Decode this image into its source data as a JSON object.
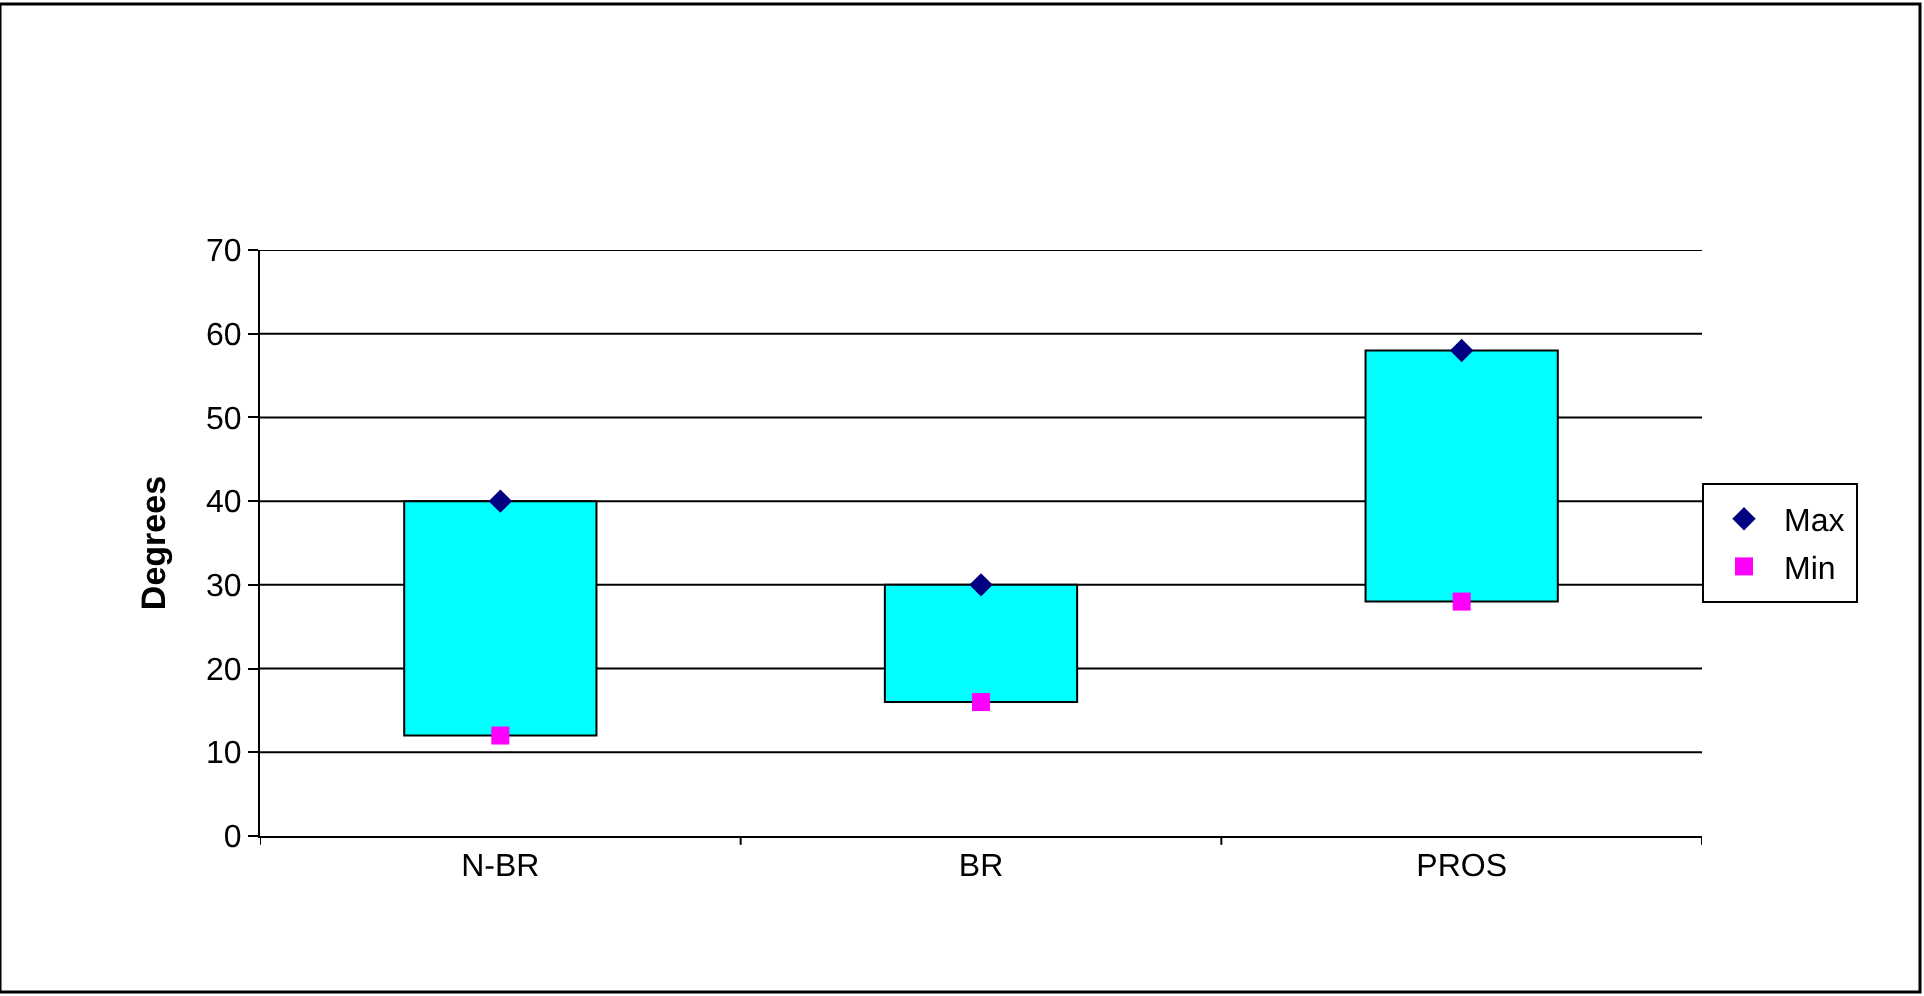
{
  "chart_data": {
    "type": "bar",
    "ylabel": "Degrees",
    "categories": [
      "N-BR",
      "BR",
      "PROS"
    ],
    "series": [
      {
        "color": "#00ffff",
        "base": [
          12,
          16,
          28
        ],
        "values": [
          28,
          14,
          30
        ]
      },
      {
        "type": "scatter",
        "name": "Max",
        "color": "#000080",
        "marker": "diamond",
        "values": [
          40,
          30,
          58
        ]
      },
      {
        "type": "scatter",
        "name": "Min",
        "color": "#ff00ff",
        "marker": "square",
        "values": [
          12,
          16,
          28
        ]
      }
    ],
    "ylim": [
      0,
      70
    ],
    "yticks": [
      0,
      10,
      20,
      30,
      40,
      50,
      60,
      70
    ],
    "grid": "y",
    "legend": "right"
  }
}
